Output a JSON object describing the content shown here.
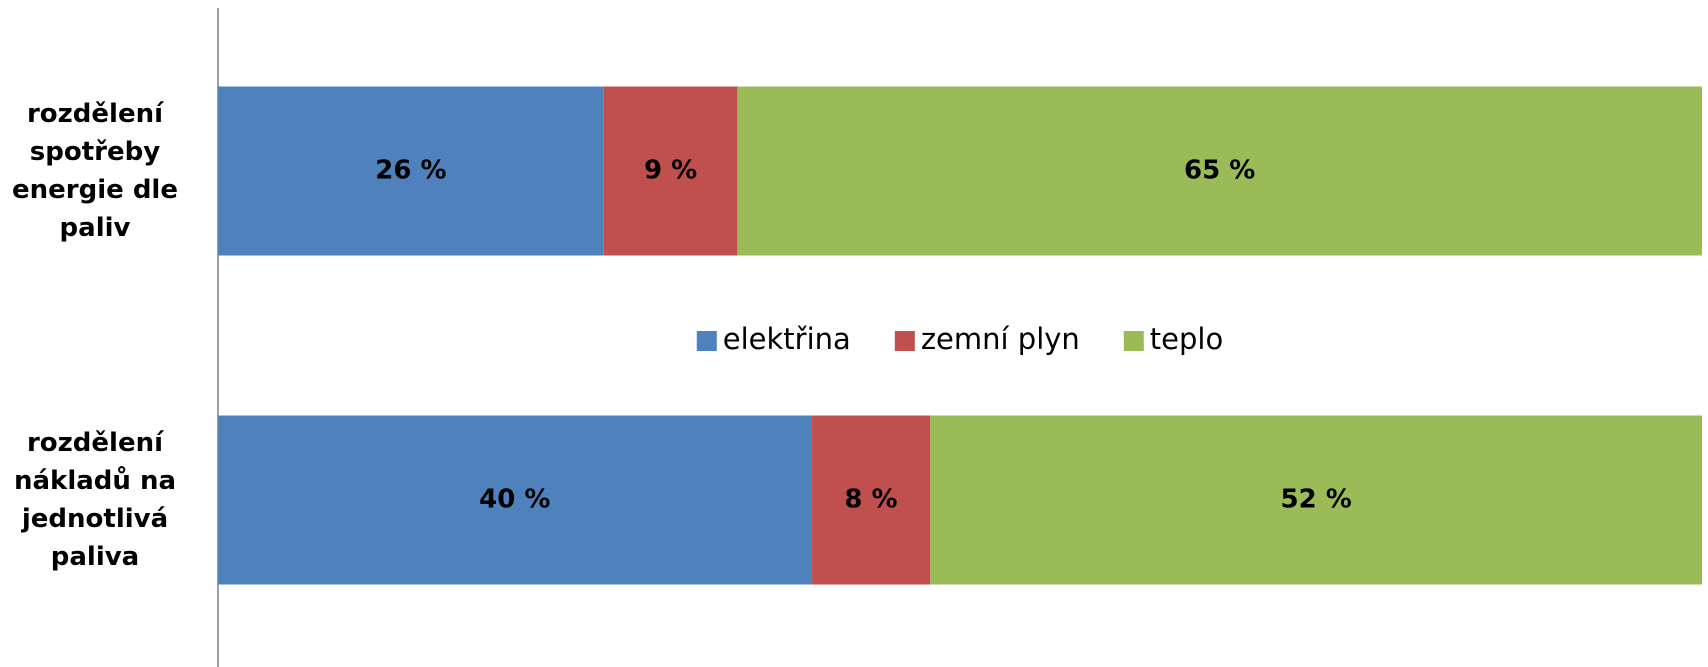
{
  "chart_data": {
    "type": "stacked_bar_horizontal",
    "categories": [
      "rozdělení spotřeby energie dle paliv",
      "rozdělení nákladů na jednotlivá paliva"
    ],
    "series": [
      {
        "name": "elektřina",
        "color": "#4f81bd",
        "values": [
          26,
          40
        ],
        "value_labels": [
          "26 %",
          "40 %"
        ]
      },
      {
        "name": "zemní plyn",
        "color": "#c0504d",
        "values": [
          9,
          8
        ],
        "value_labels": [
          "9 %",
          "8 %"
        ]
      },
      {
        "name": "teplo",
        "color": "#9bbb59",
        "values": [
          65,
          52
        ],
        "value_labels": [
          "65 %",
          "52 %"
        ]
      }
    ],
    "xlim": [
      0,
      100
    ],
    "legend": "center"
  }
}
